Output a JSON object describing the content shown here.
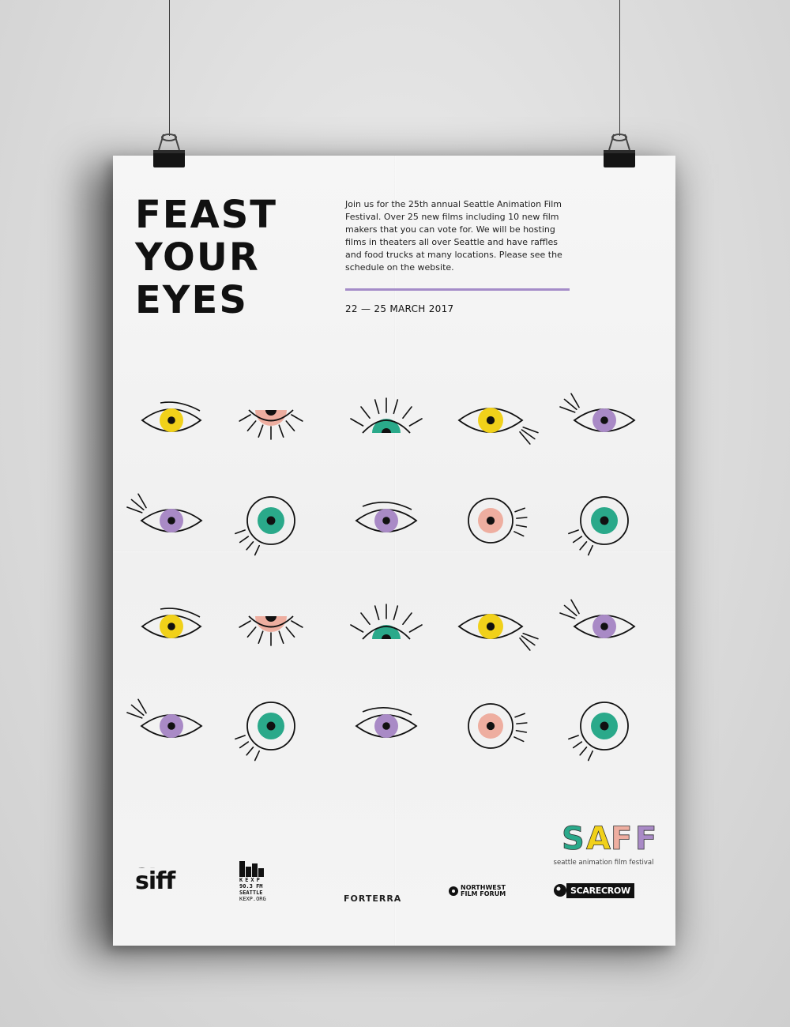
{
  "poster": {
    "headline": [
      "FEAST",
      "YOUR",
      "EYES"
    ],
    "intro": "Join us for the 25th annual Seattle Animation Film Festival. Over 25 new films including 10 new film makers that you can vote for. We will be hosting films in theaters all over Seattle and have raffles and food trucks at many locations. Please see the schedule on the website.",
    "dates": "22 — 25 MARCH 2017",
    "accent_color": "#a48cc8"
  },
  "eye_colors": {
    "yellow": "#f1d11a",
    "pink": "#eeaea0",
    "teal": "#2aa98a",
    "purple": "#a98ac6",
    "line": "#111111"
  },
  "eye_grid": [
    [
      "open-lashes-top:yellow",
      "closed-lashes-down:pink",
      "half-lashes-up:teal",
      "open-lashes-down:yellow",
      "open-lashes-left:purple"
    ],
    [
      "open-lashes-left:purple",
      "round-lashes-bl:teal",
      "open:purple",
      "round-lashes-right:pink",
      "round-lashes-bl:teal"
    ],
    [
      "open-lashes-top:yellow",
      "closed-lashes-down:pink",
      "half-lashes-up:teal",
      "open-lashes-down:yellow",
      "open-lashes-left:purple"
    ],
    [
      "open-lashes-left:purple",
      "round-lashes-bl:teal",
      "open:purple",
      "round-lashes-right:pink",
      "round-lashes-bl:teal"
    ]
  ],
  "sponsors": {
    "siff": "siff",
    "kexp_letters": "KEXP",
    "kexp_lines": [
      "90.3 FM",
      "SEATTLE",
      "KEXP.ORG"
    ],
    "forterra": "FORTERRA",
    "nwff_lines": [
      "NORTHWEST",
      "FILM FORUM"
    ],
    "scarecrow": "SCARECROW"
  },
  "saff": {
    "letters": [
      "S",
      "A",
      "F",
      "F"
    ],
    "letter_colors": [
      "#2aa98a",
      "#f1d11a",
      "#eeaea0",
      "#a98ac6"
    ],
    "tagline": "seattle animation film festival"
  }
}
